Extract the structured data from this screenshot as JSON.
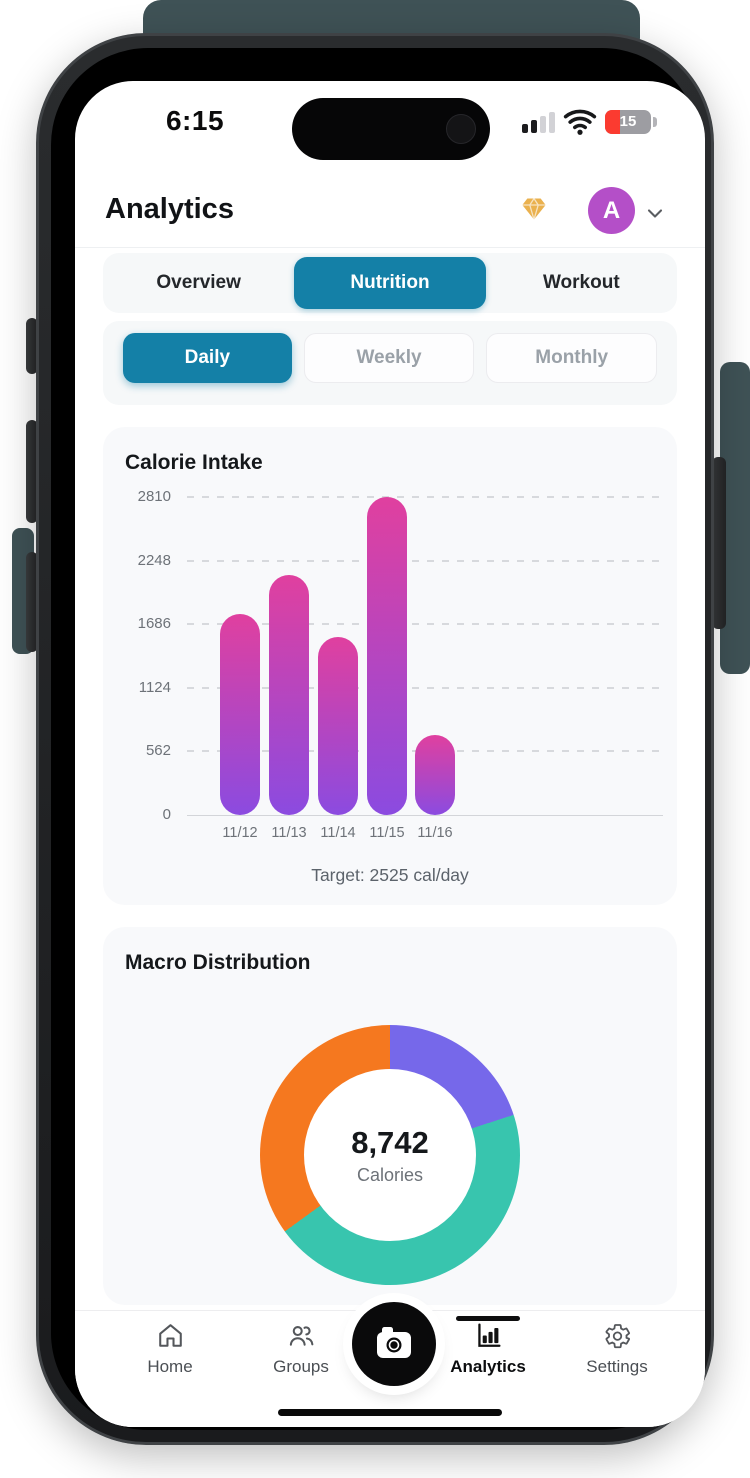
{
  "status_bar": {
    "time": "6:15",
    "battery_level": "15",
    "signal_bars_filled": 2,
    "signal_bars_total": 4
  },
  "header": {
    "title": "Analytics",
    "avatar_initial": "A"
  },
  "tabs": {
    "items": [
      {
        "label": "Overview",
        "active": false
      },
      {
        "label": "Nutrition",
        "active": true
      },
      {
        "label": "Workout",
        "active": false
      }
    ]
  },
  "periods": {
    "items": [
      {
        "label": "Daily",
        "active": true
      },
      {
        "label": "Weekly",
        "active": false
      },
      {
        "label": "Monthly",
        "active": false
      }
    ]
  },
  "calorie_card": {
    "title": "Calorie Intake",
    "target_label": "Target: 2525 cal/day"
  },
  "macro_card": {
    "title": "Macro Distribution",
    "center_value": "8,742",
    "center_label": "Calories"
  },
  "bottom_nav": {
    "items": [
      {
        "label": "Home",
        "icon": "home-icon",
        "active": false
      },
      {
        "label": "Groups",
        "icon": "groups-icon",
        "active": false
      },
      {
        "label": "Analytics",
        "icon": "bar-chart-icon",
        "active": true
      },
      {
        "label": "Settings",
        "icon": "gear-icon",
        "active": false
      }
    ],
    "center_button_icon": "camera-icon"
  },
  "colors": {
    "accent_teal": "#1480a7",
    "bar_gradient_top": "#e0409f",
    "bar_gradient_bottom": "#8b4be0",
    "donut_purple": "#7668ea",
    "donut_teal": "#38c5ae",
    "donut_orange": "#f5781f",
    "avatar_purple": "#b44fc8",
    "premium_gold": "#eab14e",
    "battery_red": "#fb3b30",
    "band_teal": "#3f5256"
  },
  "chart_data": [
    {
      "type": "bar",
      "title": "Calorie Intake",
      "categories": [
        "11/12",
        "11/13",
        "11/14",
        "11/15",
        "11/16"
      ],
      "values": [
        1780,
        2120,
        1570,
        2810,
        710
      ],
      "yticks": [
        0,
        562,
        1124,
        1686,
        2248,
        2810
      ],
      "ylim": [
        0,
        2810
      ],
      "xlabel": "",
      "ylabel": "",
      "grid": "dashed-horizontal",
      "annotation": "Target: 2525 cal/day",
      "bar_gradient": [
        "#e0409f",
        "#8b4be0"
      ]
    },
    {
      "type": "pie",
      "donut": true,
      "title": "Macro Distribution",
      "center_value": "8,742",
      "center_label": "Calories",
      "start_angle_deg": 0,
      "direction": "clockwise",
      "segments": [
        {
          "color_name": "purple",
          "color": "#7668ea",
          "percent": 20
        },
        {
          "color_name": "teal",
          "color": "#38c5ae",
          "percent": 45
        },
        {
          "color_name": "orange",
          "color": "#f5781f",
          "percent": 35
        }
      ]
    }
  ]
}
